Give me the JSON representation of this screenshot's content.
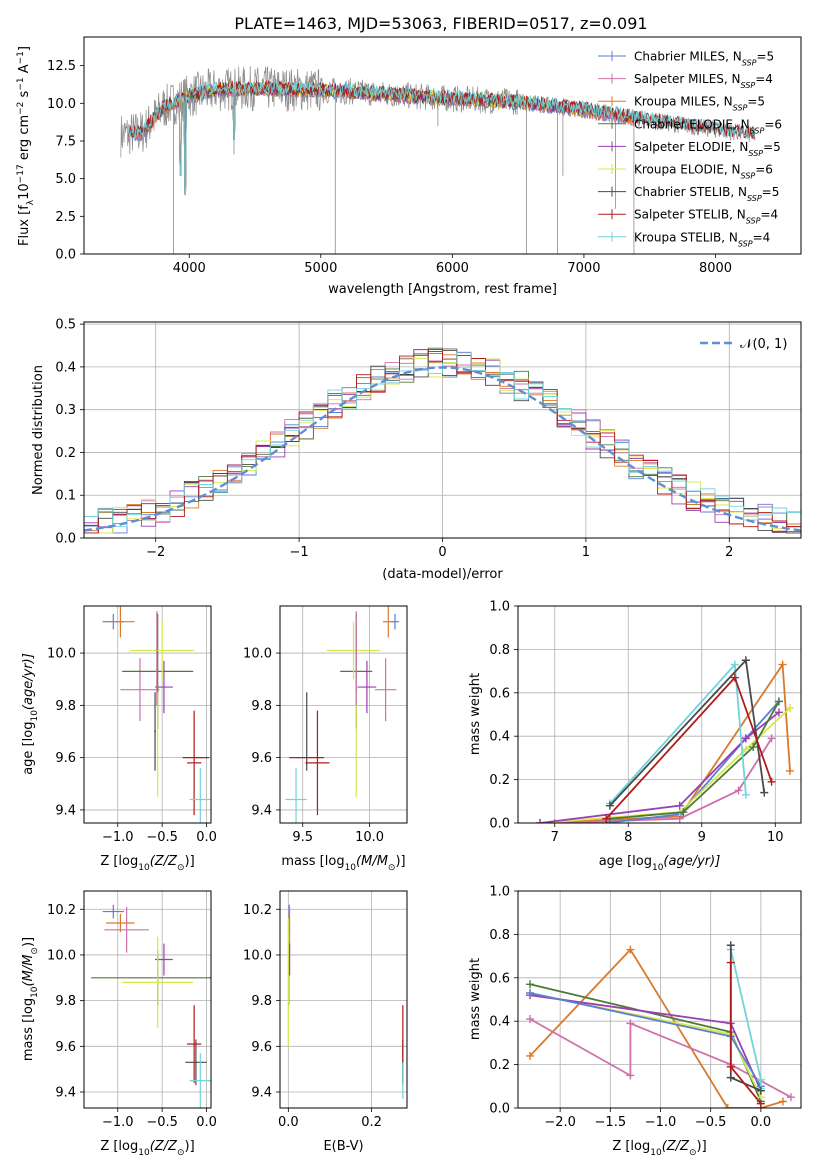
{
  "figure_title": "PLATE=1463, MJD=53063, FIBERID=0517, z=0.091",
  "colors": {
    "chabrier_miles": "#5a7fd4",
    "salpeter_miles": "#d070a8",
    "kroupa_miles": "#d97a2b",
    "chabrier_elodie": "#4f7a3a",
    "salpeter_elodie": "#9b3fb5",
    "kroupa_elodie": "#d4e84a",
    "chabrier_stelib": "#4a4a4a",
    "salpeter_stelib": "#b01c1c",
    "kroupa_stelib": "#6fd4dc",
    "data": "#8c8c8c",
    "gaussian": "#5b8fd6",
    "grid": "#b0b0b0"
  },
  "chart_data": [
    {
      "id": "spectrum",
      "type": "line",
      "xlabel": "wavelength [Angstrom, rest frame]",
      "ylabel_main": "Flux [f",
      "ylabel_sub": "λ",
      "ylabel_rest": "10",
      "ylabel_exp": "−17",
      "ylabel_tail": " erg cm",
      "ylabel_exp2": "−2",
      "ylabel_tail2": " s",
      "ylabel_exp3": "−1",
      "ylabel_tail3": " A",
      "ylabel_exp4": "−1",
      "ylabel_end": "]",
      "xlim": [
        3200,
        8650
      ],
      "ylim": [
        0,
        14.4
      ],
      "xticks": [
        4000,
        5000,
        6000,
        7000,
        8000
      ],
      "yticks": [
        0.0,
        2.5,
        5.0,
        7.5,
        10.0,
        12.5
      ],
      "grid": false,
      "legend_placement": "top-right",
      "legend": [
        {
          "name": "Chabrier MILES, N",
          "sub": "SSP",
          "tail": "=5",
          "color_key": "chabrier_miles"
        },
        {
          "name": "Salpeter MILES, N",
          "sub": "SSP",
          "tail": "=4",
          "color_key": "salpeter_miles"
        },
        {
          "name": "Kroupa MILES, N",
          "sub": "SSP",
          "tail": "=5",
          "color_key": "kroupa_miles"
        },
        {
          "name": "Chabrier ELODIE, N",
          "sub": "SSP",
          "tail": "=6",
          "color_key": "chabrier_elodie"
        },
        {
          "name": "Salpeter ELODIE, N",
          "sub": "SSP",
          "tail": "=5",
          "color_key": "salpeter_elodie"
        },
        {
          "name": "Kroupa ELODIE, N",
          "sub": "SSP",
          "tail": "=6",
          "color_key": "kroupa_elodie"
        },
        {
          "name": "Chabrier STELIB, N",
          "sub": "SSP",
          "tail": "=5",
          "color_key": "chabrier_stelib"
        },
        {
          "name": "Salpeter STELIB, N",
          "sub": "SSP",
          "tail": "=4",
          "color_key": "salpeter_stelib"
        },
        {
          "name": "Kroupa STELIB, N",
          "sub": "SSP",
          "tail": "=4",
          "color_key": "kroupa_stelib"
        }
      ],
      "continuum": [
        [
          3500,
          7.9
        ],
        [
          3650,
          8.1
        ],
        [
          3800,
          9.7
        ],
        [
          4000,
          10.5
        ],
        [
          4200,
          10.9
        ],
        [
          4500,
          11.0
        ],
        [
          4900,
          10.9
        ],
        [
          5200,
          10.8
        ],
        [
          5500,
          10.6
        ],
        [
          6000,
          10.3
        ],
        [
          6500,
          10.1
        ],
        [
          7000,
          9.6
        ],
        [
          7400,
          9.0
        ],
        [
          7800,
          8.5
        ],
        [
          8300,
          7.9
        ]
      ],
      "spikes": [
        [
          3880,
          0.0
        ],
        [
          3970,
          3.9
        ],
        [
          4340,
          6.6
        ],
        [
          5110,
          0.0
        ],
        [
          5890,
          8.5
        ],
        [
          6563,
          0.0
        ],
        [
          6800,
          0.0
        ],
        [
          6840,
          5.2
        ],
        [
          7240,
          3.0
        ],
        [
          7380,
          0.0
        ]
      ]
    },
    {
      "id": "residual-histogram",
      "type": "line",
      "xlabel": "(data-model)/error",
      "ylabel": "Normed distribution",
      "xlim": [
        -2.5,
        2.5
      ],
      "ylim": [
        0,
        0.505
      ],
      "xticks": [
        -2,
        -1,
        0,
        1,
        2
      ],
      "yticks": [
        0.0,
        0.1,
        0.2,
        0.3,
        0.4,
        0.5
      ],
      "grid": true,
      "legend_placement": "top-right",
      "legend_label": "𝒩(0, 1)",
      "bin_width": 0.1
    },
    {
      "id": "age-vs-Z",
      "type": "scatter",
      "xlabel": "Z [log",
      "xlabel_sub": "10",
      "xlabel_tail": "(Z/Z",
      "xlabel_sun": "⊙",
      "xlabel_end": ")]",
      "ylabel": "age  [log",
      "ylabel_sub": "10",
      "ylabel_tail": "(age/yr)]",
      "xlim": [
        -1.38,
        0.05
      ],
      "ylim": [
        9.35,
        10.18
      ],
      "xticks": [
        -1.0,
        -0.5,
        0.0
      ],
      "yticks": [
        9.4,
        9.6,
        9.8,
        10.0
      ],
      "grid": true,
      "points": [
        {
          "color_key": "chabrier_miles",
          "x": -1.05,
          "y": 10.12,
          "xerr": 0.12,
          "yerr": 0.03
        },
        {
          "color_key": "salpeter_miles",
          "x": -0.75,
          "y": 9.86,
          "xerr": 0.22,
          "yerr": 0.12
        },
        {
          "color_key": "kroupa_miles",
          "x": -0.97,
          "y": 10.12,
          "xerr": 0.16,
          "yerr": 0.06
        },
        {
          "color_key": "chabrier_elodie",
          "x": -0.55,
          "y": 9.93,
          "xerr": 0.4,
          "yerr": 0.22
        },
        {
          "color_key": "salpeter_elodie",
          "x": -0.48,
          "y": 9.87,
          "xerr": 0.1,
          "yerr": 0.1
        },
        {
          "color_key": "kroupa_elodie",
          "x": -0.5,
          "y": 10.01,
          "xerr": 0.36,
          "yerr": 0.11
        },
        {
          "color_key": "chabrier_stelib",
          "x": -0.58,
          "y": 9.7,
          "xerr": 0.01,
          "yerr": 0.15
        },
        {
          "color_key": "salpeter_stelib",
          "x": -0.14,
          "y": 9.58,
          "xerr": 0.08,
          "yerr": 0.2
        },
        {
          "color_key": "kroupa_stelib",
          "x": -0.07,
          "y": 9.44,
          "xerr": 0.12,
          "yerr": 0.12
        },
        {
          "color_key": "salpeter_stelib",
          "x": -0.12,
          "y": 9.6,
          "xerr": 0.15,
          "yerr": 0.0
        },
        {
          "color_key": "kroupa_elodie",
          "x": -0.55,
          "y": 9.65,
          "xerr": 0.0,
          "yerr": 0.2
        },
        {
          "color_key": "salpeter_miles",
          "x": -0.56,
          "y": 9.98,
          "xerr": 0.0,
          "yerr": 0.18
        }
      ]
    },
    {
      "id": "age-vs-mass",
      "type": "scatter",
      "xlabel": "mass [log",
      "xlabel_sub": "10",
      "xlabel_tail": "(M/M",
      "xlabel_sun": "⊙",
      "xlabel_end": ")]",
      "xlim": [
        9.33,
        10.28
      ],
      "ylim": [
        9.35,
        10.18
      ],
      "xticks": [
        9.5,
        10.0
      ],
      "yticks": [
        9.4,
        9.6,
        9.8,
        10.0
      ],
      "grid": true,
      "points": [
        {
          "color_key": "chabrier_miles",
          "x": 10.19,
          "y": 10.12,
          "xerr": 0.03,
          "yerr": 0.03
        },
        {
          "color_key": "salpeter_miles",
          "x": 10.12,
          "y": 9.86,
          "xerr": 0.08,
          "yerr": 0.12
        },
        {
          "color_key": "kroupa_miles",
          "x": 10.14,
          "y": 10.12,
          "xerr": 0.04,
          "yerr": 0.06
        },
        {
          "color_key": "chabrier_elodie",
          "x": 9.9,
          "y": 9.93,
          "xerr": 0.12,
          "yerr": 0.22
        },
        {
          "color_key": "salpeter_elodie",
          "x": 9.98,
          "y": 9.87,
          "xerr": 0.07,
          "yerr": 0.1
        },
        {
          "color_key": "kroupa_elodie",
          "x": 9.88,
          "y": 10.01,
          "xerr": 0.2,
          "yerr": 0.11
        },
        {
          "color_key": "chabrier_stelib",
          "x": 9.53,
          "y": 9.7,
          "xerr": 0.0,
          "yerr": 0.15
        },
        {
          "color_key": "salpeter_stelib",
          "x": 9.61,
          "y": 9.58,
          "xerr": 0.09,
          "yerr": 0.2
        },
        {
          "color_key": "kroupa_stelib",
          "x": 9.45,
          "y": 9.44,
          "xerr": 0.08,
          "yerr": 0.12
        },
        {
          "color_key": "salpeter_stelib",
          "x": 9.53,
          "y": 9.6,
          "xerr": 0.13,
          "yerr": 0.0
        },
        {
          "color_key": "kroupa_elodie",
          "x": 9.9,
          "y": 9.65,
          "xerr": 0.0,
          "yerr": 0.2
        },
        {
          "color_key": "salpeter_miles",
          "x": 9.9,
          "y": 9.98,
          "xerr": 0.0,
          "yerr": 0.18
        }
      ]
    },
    {
      "id": "mass-weight-vs-age",
      "type": "line",
      "xlabel": "age  [log",
      "xlabel_sub": "10",
      "xlabel_tail": "(age/yr)]",
      "ylabel": "mass weight",
      "xlim": [
        6.5,
        10.35
      ],
      "ylim": [
        0,
        1.0
      ],
      "xticks": [
        7,
        8,
        9,
        10
      ],
      "yticks": [
        0.0,
        0.2,
        0.4,
        0.6,
        0.8,
        1.0
      ],
      "grid": true,
      "series": [
        {
          "color_key": "kroupa_miles",
          "x": [
            6.8,
            8.7,
            10.1,
            10.2
          ],
          "y": [
            0.0,
            0.03,
            0.73,
            0.24
          ]
        },
        {
          "color_key": "salpeter_miles",
          "x": [
            7.0,
            8.7,
            9.5,
            9.95
          ],
          "y": [
            0.0,
            0.02,
            0.15,
            0.39
          ]
        },
        {
          "color_key": "chabrier_miles",
          "x": [
            7.7,
            8.7,
            9.6,
            10.05
          ],
          "y": [
            0.0,
            0.04,
            0.39,
            0.56
          ]
        },
        {
          "color_key": "kroupa_elodie",
          "x": [
            6.8,
            8.7,
            9.6,
            10.2
          ],
          "y": [
            0.0,
            0.05,
            0.34,
            0.53
          ]
        },
        {
          "color_key": "salpeter_elodie",
          "x": [
            6.8,
            8.7,
            9.6,
            10.05
          ],
          "y": [
            0.0,
            0.08,
            0.39,
            0.51
          ]
        },
        {
          "color_key": "chabrier_elodie",
          "x": [
            7.75,
            8.75,
            9.7,
            10.05
          ],
          "y": [
            0.02,
            0.05,
            0.35,
            0.56
          ]
        },
        {
          "color_key": "kroupa_stelib",
          "x": [
            7.75,
            9.45,
            9.6
          ],
          "y": [
            0.09,
            0.73,
            0.13
          ]
        },
        {
          "color_key": "chabrier_stelib",
          "x": [
            7.75,
            9.6,
            9.85
          ],
          "y": [
            0.08,
            0.75,
            0.14
          ]
        },
        {
          "color_key": "salpeter_stelib",
          "x": [
            7.7,
            9.45,
            9.95
          ],
          "y": [
            0.02,
            0.67,
            0.19
          ]
        }
      ]
    },
    {
      "id": "mass-vs-Z",
      "type": "scatter",
      "xlabel": "Z [log",
      "xlabel_sub": "10",
      "xlabel_tail": "(Z/Z",
      "xlabel_sun": "⊙",
      "xlabel_end": ")]",
      "ylabel": "mass [log",
      "ylabel_sub": "10",
      "ylabel_tail": "(M/M",
      "ylabel_sun": "⊙",
      "ylabel_end": ")]",
      "xlim": [
        -1.38,
        0.05
      ],
      "ylim": [
        9.33,
        10.28
      ],
      "xticks": [
        -1.0,
        -0.5,
        0.0
      ],
      "yticks": [
        9.4,
        9.6,
        9.8,
        10.0,
        10.2
      ],
      "grid": true,
      "points": [
        {
          "color_key": "chabrier_miles",
          "x": -1.05,
          "y": 10.19,
          "xerr": 0.12,
          "yerr": 0.03
        },
        {
          "color_key": "salpeter_miles",
          "x": -0.9,
          "y": 10.11,
          "xerr": 0.25,
          "yerr": 0.1
        },
        {
          "color_key": "kroupa_miles",
          "x": -0.97,
          "y": 10.14,
          "xerr": 0.16,
          "yerr": 0.04
        },
        {
          "color_key": "chabrier_elodie",
          "x": -0.55,
          "y": 9.9,
          "xerr": 0.75,
          "yerr": 0.12
        },
        {
          "color_key": "salpeter_elodie",
          "x": -0.48,
          "y": 9.98,
          "xerr": 0.1,
          "yerr": 0.07
        },
        {
          "color_key": "kroupa_elodie",
          "x": -0.55,
          "y": 9.88,
          "xerr": 0.4,
          "yerr": 0.2
        },
        {
          "color_key": "chabrier_stelib",
          "x": -0.12,
          "y": 9.53,
          "xerr": 0.12,
          "yerr": 0.1
        },
        {
          "color_key": "salpeter_stelib",
          "x": -0.14,
          "y": 9.61,
          "xerr": 0.08,
          "yerr": 0.17
        },
        {
          "color_key": "kroupa_stelib",
          "x": -0.07,
          "y": 9.45,
          "xerr": 0.12,
          "yerr": 0.12
        }
      ]
    },
    {
      "id": "mass-vs-ebv",
      "type": "scatter",
      "xlabel": "E(B-V)",
      "xlim": [
        -0.02,
        0.285
      ],
      "ylim": [
        9.33,
        10.28
      ],
      "xticks": [
        0.0,
        0.2
      ],
      "yticks": [
        9.4,
        9.6,
        9.8,
        10.0,
        10.2
      ],
      "grid": true,
      "points": [
        {
          "color_key": "chabrier_miles",
          "x": 0.002,
          "y": 10.19,
          "xerr": 0.0,
          "yerr": 0.03
        },
        {
          "color_key": "salpeter_miles",
          "x": 0.003,
          "y": 10.11,
          "xerr": 0.0,
          "yerr": 0.1
        },
        {
          "color_key": "kroupa_miles",
          "x": 0.002,
          "y": 10.14,
          "xerr": 0.0,
          "yerr": 0.04
        },
        {
          "color_key": "chabrier_elodie",
          "x": 0.001,
          "y": 9.9,
          "xerr": 0.0,
          "yerr": 0.12
        },
        {
          "color_key": "salpeter_elodie",
          "x": 0.003,
          "y": 9.98,
          "xerr": 0.0,
          "yerr": 0.07
        },
        {
          "color_key": "kroupa_elodie",
          "x": 0.0,
          "y": 9.88,
          "xerr": 0.0,
          "yerr": 0.28
        },
        {
          "color_key": "chabrier_stelib",
          "x": 0.275,
          "y": 9.53,
          "xerr": 0.0,
          "yerr": 0.1
        },
        {
          "color_key": "salpeter_stelib",
          "x": 0.275,
          "y": 9.61,
          "xerr": 0.0,
          "yerr": 0.17
        },
        {
          "color_key": "kroupa_stelib",
          "x": 0.275,
          "y": 9.45,
          "xerr": 0.0,
          "yerr": 0.08
        }
      ]
    },
    {
      "id": "mass-weight-vs-Z",
      "type": "line",
      "xlabel": "Z [log",
      "xlabel_sub": "10",
      "xlabel_tail": "(Z/Z",
      "xlabel_sun": "⊙",
      "xlabel_end": ")]",
      "ylabel": "mass weight",
      "xlim": [
        -2.42,
        0.4
      ],
      "ylim": [
        0,
        1.0
      ],
      "xticks": [
        -2.0,
        -1.5,
        -1.0,
        -0.5,
        0.0
      ],
      "yticks": [
        0.0,
        0.2,
        0.4,
        0.6,
        0.8,
        1.0
      ],
      "grid": true,
      "series": [
        {
          "color_key": "kroupa_miles",
          "x": [
            -2.3,
            -1.3,
            -0.33,
            0.0,
            0.22
          ],
          "y": [
            0.24,
            0.73,
            0.0,
            0.0,
            0.03
          ]
        },
        {
          "color_key": "salpeter_miles",
          "x": [
            -2.3,
            -1.3,
            -1.3,
            -0.3,
            0.3
          ],
          "y": [
            0.41,
            0.15,
            0.39,
            0.2,
            0.05
          ]
        },
        {
          "color_key": "chabrier_elodie",
          "x": [
            -2.3,
            -0.3,
            0.0
          ],
          "y": [
            0.57,
            0.35,
            0.03
          ]
        },
        {
          "color_key": "kroupa_elodie",
          "x": [
            -2.3,
            -0.3,
            0.0
          ],
          "y": [
            0.53,
            0.34,
            0.05
          ]
        },
        {
          "color_key": "salpeter_elodie",
          "x": [
            -2.3,
            -0.3,
            0.0
          ],
          "y": [
            0.52,
            0.39,
            0.08
          ]
        },
        {
          "color_key": "chabrier_miles",
          "x": [
            -2.3,
            -0.3,
            0.0
          ],
          "y": [
            0.53,
            0.33,
            0.1
          ]
        },
        {
          "color_key": "kroupa_stelib",
          "x": [
            -0.3,
            0.0,
            0.0
          ],
          "y": [
            0.73,
            0.13,
            0.09
          ]
        },
        {
          "color_key": "chabrier_stelib",
          "x": [
            -0.3,
            -0.3,
            0.0
          ],
          "y": [
            0.75,
            0.14,
            0.08
          ]
        },
        {
          "color_key": "salpeter_stelib",
          "x": [
            -0.3,
            -0.3,
            0.0
          ],
          "y": [
            0.67,
            0.19,
            0.02
          ]
        }
      ]
    }
  ]
}
